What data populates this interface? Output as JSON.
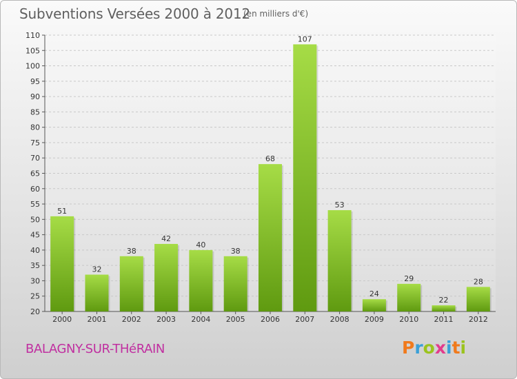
{
  "title": "Subventions Versées 2000 à 2012",
  "unit_note": "(en milliers d'€)",
  "place_name": "BALAGNY-SUR-THéRAIN",
  "logo_text": "Proxiti",
  "logo_colors": [
    "#f07a1c",
    "#3aa0d8",
    "#9bc31e",
    "#e33b8c",
    "#3aa0d8",
    "#f07a1c",
    "#9bc31e"
  ],
  "colors": {
    "bar_top": "#a6dc46",
    "bar_bottom": "#5f9a10",
    "title_color": "#5f5f5f",
    "place_color": "#c02fa0"
  },
  "chart_data": {
    "type": "bar",
    "title": "Subventions Versées 2000 à 2012",
    "subtitle": "(en milliers d'€)",
    "xlabel": "",
    "ylabel": "",
    "categories": [
      "2000",
      "2001",
      "2002",
      "2003",
      "2004",
      "2005",
      "2006",
      "2007",
      "2008",
      "2009",
      "2010",
      "2011",
      "2012"
    ],
    "values": [
      51,
      32,
      38,
      42,
      40,
      38,
      68,
      107,
      53,
      24,
      29,
      22,
      28
    ],
    "ylim": [
      20,
      110
    ],
    "yticks": [
      20,
      25,
      30,
      35,
      40,
      45,
      50,
      55,
      60,
      65,
      70,
      75,
      80,
      85,
      90,
      95,
      100,
      105,
      110
    ],
    "grid": true,
    "legend": "none"
  }
}
